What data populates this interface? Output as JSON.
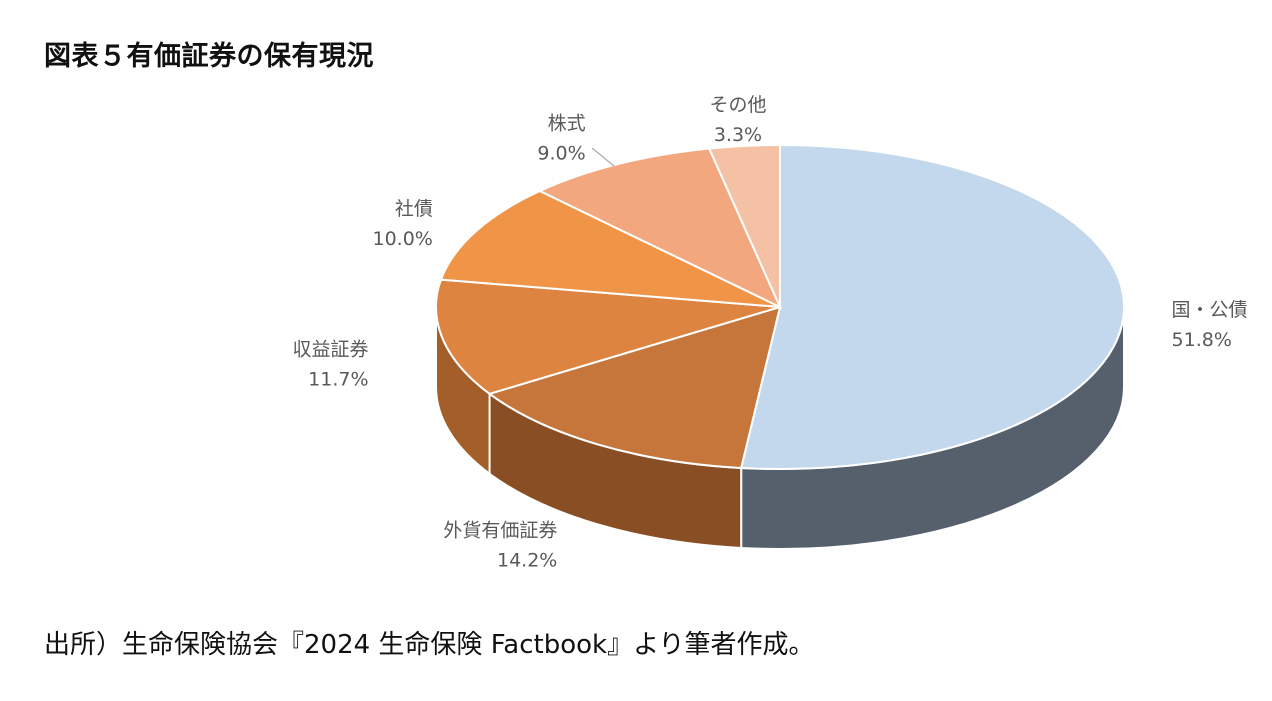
{
  "title": "図表５有価証券の保有現況",
  "source": "出所）生命保険協会『2024 生命保険 Factbook』より筆者作成。",
  "chart_data": {
    "type": "pie",
    "title": "",
    "categories": [
      "国・公債",
      "外貨有価証券",
      "収益証券",
      "社債",
      "株式",
      "その他"
    ],
    "values": [
      51.8,
      14.2,
      11.7,
      10.0,
      9.0,
      3.3
    ],
    "value_labels": [
      "51.8%",
      "14.2%",
      "11.7%",
      "10.0%",
      "9.0%",
      "3.3%"
    ],
    "unit": "%",
    "style": "3d",
    "colors": [
      "#C3D8EC",
      "#C6763A",
      "#DD8440",
      "#F09548",
      "#F2A77E",
      "#F4C1A5"
    ],
    "side_colors": [
      "#56606C",
      "#8A4E24",
      "#A35E2A",
      "#B76C30",
      "#C07E55",
      "#C4967C"
    ],
    "legend": "none"
  }
}
